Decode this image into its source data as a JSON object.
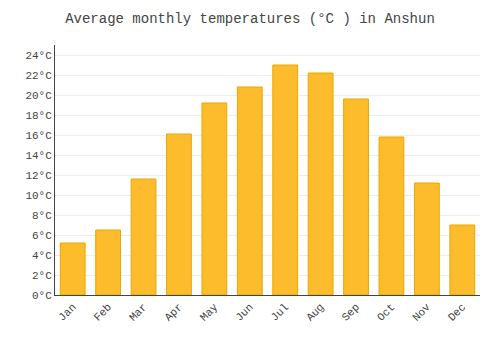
{
  "chart_data": {
    "type": "bar",
    "title": "Average monthly temperatures (°C ) in Anshun",
    "categories": [
      "Jan",
      "Feb",
      "Mar",
      "Apr",
      "May",
      "Jun",
      "Jul",
      "Aug",
      "Sep",
      "Oct",
      "Nov",
      "Dec"
    ],
    "values": [
      5.2,
      6.5,
      11.6,
      16.1,
      19.2,
      20.8,
      23.0,
      22.2,
      19.6,
      15.8,
      11.2,
      7.0
    ],
    "color": "#FDBC2C",
    "ylim": [
      0,
      25
    ],
    "yticks": [
      {
        "value": 0,
        "label": "0°C"
      },
      {
        "value": 2,
        "label": "2°C"
      },
      {
        "value": 4,
        "label": "4°C"
      },
      {
        "value": 6,
        "label": "6°C"
      },
      {
        "value": 8,
        "label": "8°C"
      },
      {
        "value": 10,
        "label": "10°C"
      },
      {
        "value": 12,
        "label": "12°C"
      },
      {
        "value": 14,
        "label": "14°C"
      },
      {
        "value": 16,
        "label": "16°C"
      },
      {
        "value": 18,
        "label": "18°C"
      },
      {
        "value": 20,
        "label": "20°C"
      },
      {
        "value": 22,
        "label": "22°C"
      },
      {
        "value": 24,
        "label": "24°C"
      }
    ],
    "grid": true
  }
}
